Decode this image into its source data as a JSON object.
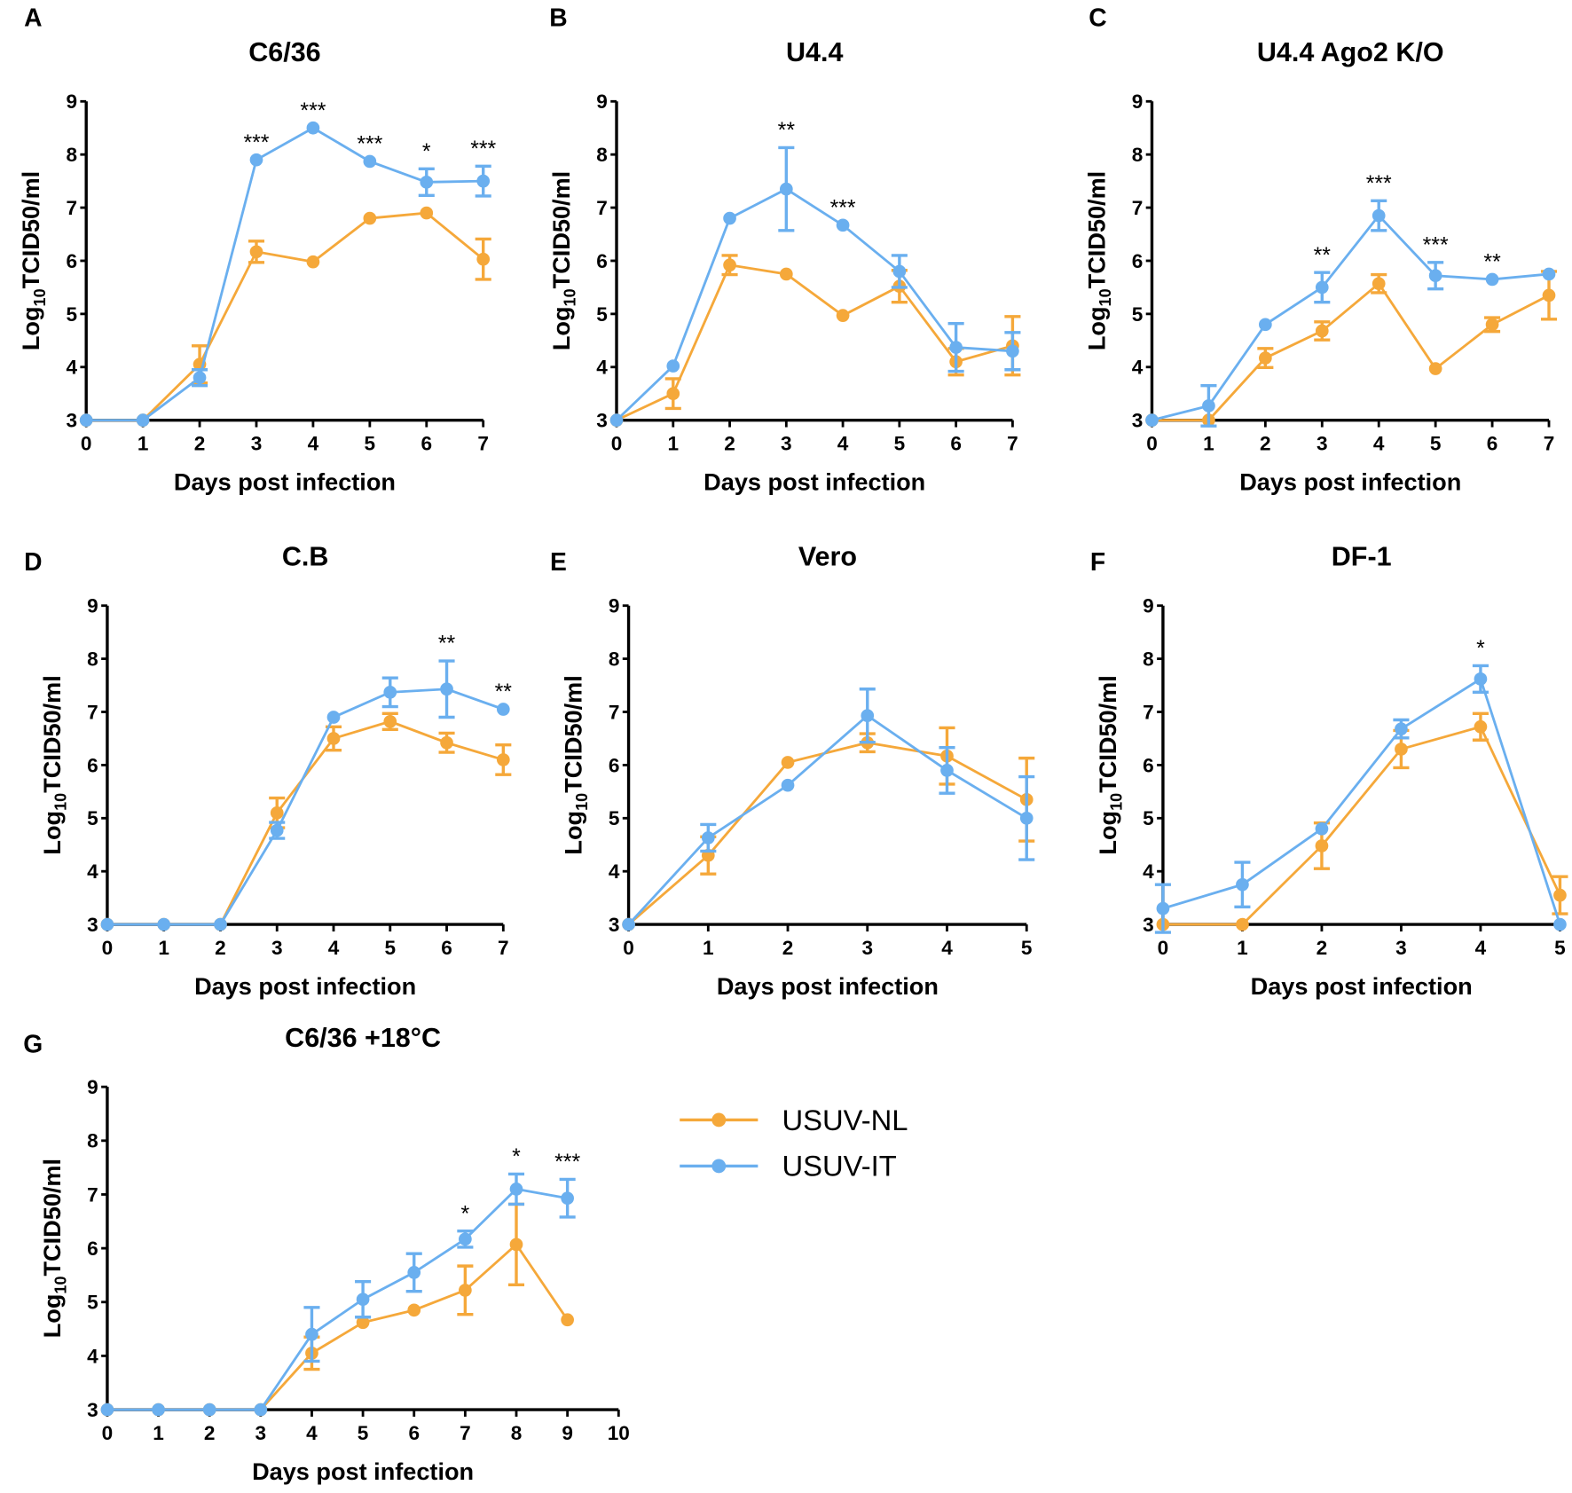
{
  "legend": {
    "placement": "right of panel G",
    "items": [
      {
        "name": "USUV-NL",
        "color": "#F5A83A"
      },
      {
        "name": "USUV-IT",
        "color": "#6AAFEF"
      }
    ]
  },
  "chart_data": [
    {
      "panel": "A",
      "type": "line",
      "title": "C6/36",
      "xlabel": "Days post infection",
      "ylabel_prefix": "Log",
      "ylabel_sub": "10",
      "ylabel_suffix": "TCID50/ml",
      "x": [
        0,
        1,
        2,
        3,
        4,
        5,
        6,
        7
      ],
      "xlim": [
        0,
        7
      ],
      "ylim": [
        3,
        9
      ],
      "yticks": [
        3,
        4,
        5,
        6,
        7,
        8,
        9
      ],
      "grid": false,
      "series": [
        {
          "name": "USUV-NL",
          "values": [
            3,
            3,
            4.05,
            6.17,
            5.98,
            6.8,
            6.9,
            6.03
          ],
          "errors": [
            0,
            0,
            0.35,
            0.2,
            0,
            0,
            0,
            0.38
          ]
        },
        {
          "name": "USUV-IT",
          "values": [
            3,
            3,
            3.8,
            7.9,
            8.5,
            7.87,
            7.48,
            7.5
          ],
          "errors": [
            0,
            0,
            0.15,
            0,
            0,
            0,
            0.25,
            0.28
          ]
        }
      ],
      "significance": [
        {
          "x": 3,
          "label": "***"
        },
        {
          "x": 4,
          "label": "***"
        },
        {
          "x": 5,
          "label": "***"
        },
        {
          "x": 6,
          "label": "*"
        },
        {
          "x": 7,
          "label": "***"
        }
      ]
    },
    {
      "panel": "B",
      "type": "line",
      "title": "U4.4",
      "xlabel": "Days post infection",
      "ylabel_prefix": "Log",
      "ylabel_sub": "10",
      "ylabel_suffix": "TCID50/ml",
      "x": [
        0,
        1,
        2,
        3,
        4,
        5,
        6,
        7
      ],
      "xlim": [
        0,
        7
      ],
      "ylim": [
        3,
        9
      ],
      "yticks": [
        3,
        4,
        5,
        6,
        7,
        8,
        9
      ],
      "grid": false,
      "series": [
        {
          "name": "USUV-NL",
          "values": [
            3,
            3.5,
            5.92,
            5.75,
            4.97,
            5.52,
            4.1,
            4.4
          ],
          "errors": [
            0,
            0.28,
            0.18,
            0,
            0,
            0.3,
            0.25,
            0.55
          ]
        },
        {
          "name": "USUV-IT",
          "values": [
            3,
            4.02,
            6.8,
            7.35,
            6.67,
            5.8,
            4.37,
            4.3
          ],
          "errors": [
            0,
            0,
            0,
            0.78,
            0,
            0.3,
            0.45,
            0.35
          ]
        }
      ],
      "significance": [
        {
          "x": 3,
          "label": "**"
        },
        {
          "x": 4,
          "label": "***"
        }
      ]
    },
    {
      "panel": "C",
      "type": "line",
      "title": "U4.4 Ago2 K/O",
      "xlabel": "Days post infection",
      "ylabel_prefix": "Log",
      "ylabel_sub": "10",
      "ylabel_suffix": "TCID50/ml",
      "x": [
        0,
        1,
        2,
        3,
        4,
        5,
        6,
        7
      ],
      "xlim": [
        0,
        7
      ],
      "ylim": [
        3,
        9
      ],
      "yticks": [
        3,
        4,
        5,
        6,
        7,
        8,
        9
      ],
      "grid": false,
      "series": [
        {
          "name": "USUV-NL",
          "values": [
            3,
            3,
            4.17,
            4.68,
            5.57,
            3.97,
            4.8,
            5.35
          ],
          "errors": [
            0,
            0,
            0.18,
            0.17,
            0.17,
            0,
            0.13,
            0.45
          ]
        },
        {
          "name": "USUV-IT",
          "values": [
            3,
            3.27,
            4.8,
            5.5,
            6.85,
            5.72,
            5.65,
            5.75
          ],
          "errors": [
            0,
            0.38,
            0,
            0.28,
            0.28,
            0.25,
            0,
            0
          ]
        }
      ],
      "significance": [
        {
          "x": 3,
          "label": "**"
        },
        {
          "x": 4,
          "label": "***"
        },
        {
          "x": 5,
          "label": "***"
        },
        {
          "x": 6,
          "label": "**"
        }
      ]
    },
    {
      "panel": "D",
      "type": "line",
      "title": "C.B",
      "xlabel": "Days post infection",
      "ylabel_prefix": "Log",
      "ylabel_sub": "10",
      "ylabel_suffix": "TCID50/ml",
      "x": [
        0,
        1,
        2,
        3,
        4,
        5,
        6,
        7
      ],
      "xlim": [
        0,
        7
      ],
      "ylim": [
        3,
        9
      ],
      "yticks": [
        3,
        4,
        5,
        6,
        7,
        8,
        9
      ],
      "grid": false,
      "series": [
        {
          "name": "USUV-NL",
          "values": [
            3,
            3,
            3,
            5.1,
            6.5,
            6.82,
            6.42,
            6.1
          ],
          "errors": [
            0,
            0,
            0,
            0.28,
            0.22,
            0.15,
            0.18,
            0.28
          ]
        },
        {
          "name": "USUV-IT",
          "values": [
            3,
            3,
            3,
            4.77,
            6.9,
            7.37,
            7.43,
            7.05
          ],
          "errors": [
            0,
            0,
            0,
            0.15,
            0,
            0.27,
            0.53,
            0
          ]
        }
      ],
      "significance": [
        {
          "x": 6,
          "label": "**"
        },
        {
          "x": 7,
          "label": "**"
        }
      ]
    },
    {
      "panel": "E",
      "type": "line",
      "title": "Vero",
      "xlabel": "Days post infection",
      "ylabel_prefix": "Log",
      "ylabel_sub": "10",
      "ylabel_suffix": "TCID50/ml",
      "x": [
        0,
        1,
        2,
        3,
        4,
        5
      ],
      "xlim": [
        0,
        5
      ],
      "ylim": [
        3,
        9
      ],
      "yticks": [
        3,
        4,
        5,
        6,
        7,
        8,
        9
      ],
      "grid": false,
      "series": [
        {
          "name": "USUV-NL",
          "values": [
            3,
            4.3,
            6.05,
            6.42,
            6.17,
            5.35
          ],
          "errors": [
            0,
            0.35,
            0,
            0.17,
            0.53,
            0.78
          ]
        },
        {
          "name": "USUV-IT",
          "values": [
            3,
            4.63,
            5.62,
            6.93,
            5.9,
            5.0
          ],
          "errors": [
            0,
            0.25,
            0,
            0.5,
            0.43,
            0.78
          ]
        }
      ],
      "significance": []
    },
    {
      "panel": "F",
      "type": "line",
      "title": "DF-1",
      "xlabel": "Days post infection",
      "ylabel_prefix": "Log",
      "ylabel_sub": "10",
      "ylabel_suffix": "TCID50/ml",
      "x": [
        0,
        1,
        2,
        3,
        4,
        5
      ],
      "xlim": [
        0,
        5
      ],
      "ylim": [
        3,
        9
      ],
      "yticks": [
        3,
        4,
        5,
        6,
        7,
        8,
        9
      ],
      "grid": false,
      "series": [
        {
          "name": "USUV-NL",
          "values": [
            3,
            3,
            4.48,
            6.3,
            6.72,
            3.55
          ],
          "errors": [
            0,
            0,
            0.43,
            0.35,
            0.25,
            0.35
          ]
        },
        {
          "name": "USUV-IT",
          "values": [
            3.3,
            3.75,
            4.8,
            6.68,
            7.62,
            3
          ],
          "errors": [
            0.45,
            0.42,
            0,
            0.17,
            0.25,
            0
          ]
        }
      ],
      "significance": [
        {
          "x": 4,
          "label": "*"
        }
      ]
    },
    {
      "panel": "G",
      "type": "line",
      "title": "C6/36  +18°C",
      "xlabel": "Days post infection",
      "ylabel_prefix": "Log",
      "ylabel_sub": "10",
      "ylabel_suffix": "TCID50/ml",
      "x": [
        0,
        1,
        2,
        3,
        4,
        5,
        6,
        7,
        8,
        9
      ],
      "xlim": [
        0,
        10
      ],
      "xticks": [
        0,
        1,
        2,
        3,
        4,
        5,
        6,
        7,
        8,
        9,
        10
      ],
      "ylim": [
        3,
        9
      ],
      "yticks": [
        3,
        4,
        5,
        6,
        7,
        8,
        9
      ],
      "grid": false,
      "series": [
        {
          "name": "USUV-NL",
          "values": [
            3,
            3,
            3,
            3,
            4.05,
            4.62,
            4.85,
            5.22,
            6.07,
            4.67
          ],
          "errors": [
            0,
            0,
            0,
            0,
            0.3,
            0,
            0,
            0.45,
            0.75,
            0
          ]
        },
        {
          "name": "USUV-IT",
          "values": [
            3,
            3,
            3,
            3,
            4.4,
            5.05,
            5.55,
            6.17,
            7.1,
            6.93
          ],
          "errors": [
            0,
            0,
            0,
            0,
            0.5,
            0.33,
            0.35,
            0.15,
            0.28,
            0.35
          ]
        }
      ],
      "significance": [
        {
          "x": 7,
          "label": "*"
        },
        {
          "x": 8,
          "label": "*"
        },
        {
          "x": 9,
          "label": "***"
        }
      ]
    }
  ]
}
